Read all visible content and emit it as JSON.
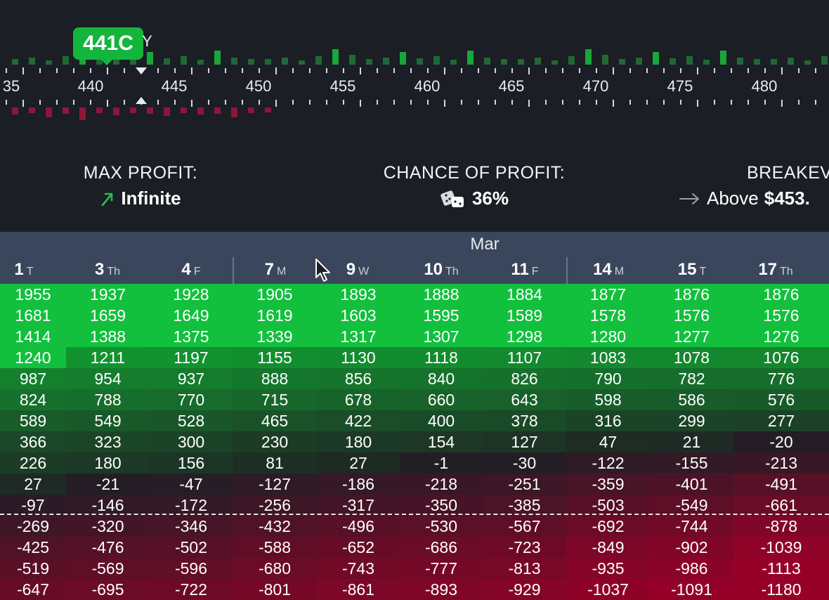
{
  "ladder": {
    "bubble": "441C",
    "bubble_after": "Y",
    "ticks": [
      "35",
      "440",
      "445",
      "450",
      "455",
      "460",
      "465",
      "470",
      "475",
      "480"
    ]
  },
  "stats": {
    "max_profit": {
      "label": "MAX PROFIT:",
      "value": "Infinite",
      "icon": "trend-up-arrow-icon"
    },
    "chance": {
      "label": "CHANCE OF PROFIT:",
      "value": "36%",
      "icon": "dice-icon"
    },
    "breakeven": {
      "label": "BREAKEV",
      "prefix": "Above",
      "value": "$453.",
      "icon": "right-arrow-icon"
    }
  },
  "table": {
    "month": "Mar",
    "days": [
      {
        "d": "1",
        "w": "T"
      },
      {
        "d": "3",
        "w": "Th"
      },
      {
        "d": "4",
        "w": "F"
      },
      {
        "d": "7",
        "w": "M"
      },
      {
        "d": "9",
        "w": "W"
      },
      {
        "d": "10",
        "w": "Th"
      },
      {
        "d": "11",
        "w": "F"
      },
      {
        "d": "14",
        "w": "M"
      },
      {
        "d": "15",
        "w": "T"
      },
      {
        "d": "17",
        "w": "Th"
      }
    ],
    "rows": [
      [
        "1955",
        "1937",
        "1928",
        "1905",
        "1893",
        "1888",
        "1884",
        "1877",
        "1876",
        "1876"
      ],
      [
        "1681",
        "1659",
        "1649",
        "1619",
        "1603",
        "1595",
        "1589",
        "1578",
        "1576",
        "1576"
      ],
      [
        "1414",
        "1388",
        "1375",
        "1339",
        "1317",
        "1307",
        "1298",
        "1280",
        "1277",
        "1276"
      ],
      [
        "1240",
        "1211",
        "1197",
        "1155",
        "1130",
        "1118",
        "1107",
        "1083",
        "1078",
        "1076"
      ],
      [
        "987",
        "954",
        "937",
        "888",
        "856",
        "840",
        "826",
        "790",
        "782",
        "776"
      ],
      [
        "824",
        "788",
        "770",
        "715",
        "678",
        "660",
        "643",
        "598",
        "586",
        "576"
      ],
      [
        "589",
        "549",
        "528",
        "465",
        "422",
        "400",
        "378",
        "316",
        "299",
        "277"
      ],
      [
        "366",
        "323",
        "300",
        "230",
        "180",
        "154",
        "127",
        "47",
        "21",
        "-20"
      ],
      [
        "226",
        "180",
        "156",
        "81",
        "27",
        "-1",
        "-30",
        "-122",
        "-155",
        "-213"
      ],
      [
        "27",
        "-21",
        "-47",
        "-127",
        "-186",
        "-218",
        "-251",
        "-359",
        "-401",
        "-491"
      ],
      [
        "-97",
        "-146",
        "-172",
        "-256",
        "-317",
        "-350",
        "-385",
        "-503",
        "-549",
        "-661"
      ],
      [
        "-269",
        "-320",
        "-346",
        "-432",
        "-496",
        "-530",
        "-567",
        "-692",
        "-744",
        "-878"
      ],
      [
        "-425",
        "-476",
        "-502",
        "-588",
        "-652",
        "-686",
        "-723",
        "-849",
        "-902",
        "-1039"
      ],
      [
        "-519",
        "-569",
        "-596",
        "-680",
        "-743",
        "-777",
        "-813",
        "-935",
        "-986",
        "-1113"
      ],
      [
        "-647",
        "-695",
        "-722",
        "-801",
        "-861",
        "-893",
        "-929",
        "-1037",
        "-1091",
        "-1180"
      ]
    ]
  }
}
